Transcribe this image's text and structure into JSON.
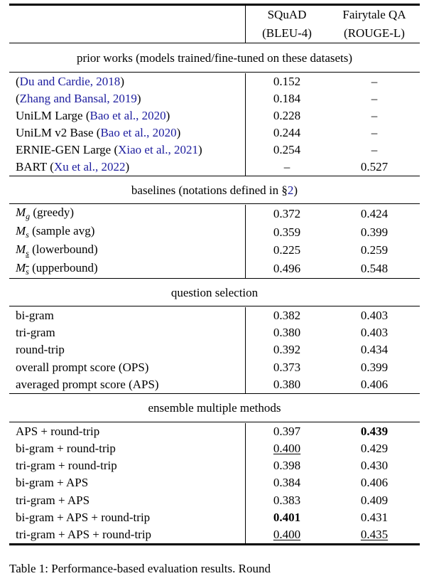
{
  "page": {
    "background": "#ffffff",
    "text_color": "#000000",
    "link_color": "#1c1c9e"
  },
  "header": {
    "col1_line1": "SQuAD",
    "col1_line2": "(BLEU-4)",
    "col2_line1": "Fairytale QA",
    "col2_line2": "(ROUGE-L)"
  },
  "sections": [
    {
      "title": [
        {
          "t": "prior works (models trained/fine-tuned on these datasets)",
          "s": "p"
        }
      ],
      "rows": [
        {
          "label": [
            {
              "t": "(",
              "s": "p"
            },
            {
              "t": "Du and Cardie, 2018",
              "s": "l"
            },
            {
              "t": ")",
              "s": "p"
            }
          ],
          "v1": {
            "t": "0.152",
            "s": "p"
          },
          "v2": {
            "t": "–",
            "s": "p"
          }
        },
        {
          "label": [
            {
              "t": "(",
              "s": "p"
            },
            {
              "t": "Zhang and Bansal, 2019",
              "s": "l"
            },
            {
              "t": ")",
              "s": "p"
            }
          ],
          "v1": {
            "t": "0.184",
            "s": "p"
          },
          "v2": {
            "t": "–",
            "s": "p"
          }
        },
        {
          "label": [
            {
              "t": "UniLM Large (",
              "s": "p"
            },
            {
              "t": "Bao et al., 2020",
              "s": "l"
            },
            {
              "t": ")",
              "s": "p"
            }
          ],
          "v1": {
            "t": "0.228",
            "s": "p"
          },
          "v2": {
            "t": "–",
            "s": "p"
          }
        },
        {
          "label": [
            {
              "t": "UniLM v2 Base (",
              "s": "p"
            },
            {
              "t": "Bao et al., 2020",
              "s": "l"
            },
            {
              "t": ")",
              "s": "p"
            }
          ],
          "v1": {
            "t": "0.244",
            "s": "p"
          },
          "v2": {
            "t": "–",
            "s": "p"
          }
        },
        {
          "label": [
            {
              "t": "ERNIE-GEN Large (",
              "s": "p"
            },
            {
              "t": "Xiao et al., 2021",
              "s": "l"
            },
            {
              "t": ")",
              "s": "p"
            }
          ],
          "v1": {
            "t": "0.254",
            "s": "p"
          },
          "v2": {
            "t": "–",
            "s": "p"
          }
        },
        {
          "label": [
            {
              "t": "BART (",
              "s": "p"
            },
            {
              "t": "Xu et al., 2022",
              "s": "l"
            },
            {
              "t": ")",
              "s": "p"
            }
          ],
          "v1": {
            "t": "–",
            "s": "p"
          },
          "v2": {
            "t": "0.527",
            "s": "p"
          }
        }
      ]
    },
    {
      "title": [
        {
          "t": "baselines (notations defined in §",
          "s": "p"
        },
        {
          "t": "2",
          "s": "l"
        },
        {
          "t": ")",
          "s": "p"
        }
      ],
      "rows": [
        {
          "label": [
            {
              "t": "M",
              "s": "mi"
            },
            {
              "t": "g",
              "s": "ms"
            },
            {
              "t": " (greedy)",
              "s": "p"
            }
          ],
          "v1": {
            "t": "0.372",
            "s": "p"
          },
          "v2": {
            "t": "0.424",
            "s": "p"
          }
        },
        {
          "label": [
            {
              "t": "M",
              "s": "mi"
            },
            {
              "t": "s",
              "s": "ms"
            },
            {
              "t": " (sample avg)",
              "s": "p"
            }
          ],
          "v1": {
            "t": "0.359",
            "s": "p"
          },
          "v2": {
            "t": "0.399",
            "s": "p"
          }
        },
        {
          "label": [
            {
              "t": "M",
              "s": "mi"
            },
            {
              "t": "s",
              "s": "msu"
            },
            {
              "t": " (lowerbound)",
              "s": "p"
            }
          ],
          "v1": {
            "t": "0.225",
            "s": "p"
          },
          "v2": {
            "t": "0.259",
            "s": "p"
          }
        },
        {
          "label": [
            {
              "t": "M",
              "s": "mi"
            },
            {
              "t": "s",
              "s": "mso"
            },
            {
              "t": " (upperbound)",
              "s": "p"
            }
          ],
          "v1": {
            "t": "0.496",
            "s": "p"
          },
          "v2": {
            "t": "0.548",
            "s": "p"
          }
        }
      ]
    },
    {
      "title": [
        {
          "t": "question selection",
          "s": "p"
        }
      ],
      "rows": [
        {
          "label": [
            {
              "t": "bi-gram",
              "s": "p"
            }
          ],
          "v1": {
            "t": "0.382",
            "s": "p"
          },
          "v2": {
            "t": "0.403",
            "s": "p"
          }
        },
        {
          "label": [
            {
              "t": "tri-gram",
              "s": "p"
            }
          ],
          "v1": {
            "t": "0.380",
            "s": "p"
          },
          "v2": {
            "t": "0.403",
            "s": "p"
          }
        },
        {
          "label": [
            {
              "t": "round-trip",
              "s": "p"
            }
          ],
          "v1": {
            "t": "0.392",
            "s": "p"
          },
          "v2": {
            "t": "0.434",
            "s": "p"
          }
        },
        {
          "label": [
            {
              "t": "overall prompt score (OPS)",
              "s": "p"
            }
          ],
          "v1": {
            "t": "0.373",
            "s": "p"
          },
          "v2": {
            "t": "0.399",
            "s": "p"
          }
        },
        {
          "label": [
            {
              "t": "averaged prompt score (APS)",
              "s": "p"
            }
          ],
          "v1": {
            "t": "0.380",
            "s": "p"
          },
          "v2": {
            "t": "0.406",
            "s": "p"
          }
        }
      ]
    },
    {
      "title": [
        {
          "t": "ensemble multiple methods",
          "s": "p"
        }
      ],
      "rows": [
        {
          "label": [
            {
              "t": "APS + round-trip",
              "s": "p"
            }
          ],
          "v1": {
            "t": "0.397",
            "s": "p"
          },
          "v2": {
            "t": "0.439",
            "s": "b"
          }
        },
        {
          "label": [
            {
              "t": "bi-gram + round-trip",
              "s": "p"
            }
          ],
          "v1": {
            "t": "0.400",
            "s": "u"
          },
          "v2": {
            "t": "0.429",
            "s": "p"
          }
        },
        {
          "label": [
            {
              "t": "tri-gram + round-trip",
              "s": "p"
            }
          ],
          "v1": {
            "t": "0.398",
            "s": "p"
          },
          "v2": {
            "t": "0.430",
            "s": "p"
          }
        },
        {
          "label": [
            {
              "t": "bi-gram + APS",
              "s": "p"
            }
          ],
          "v1": {
            "t": "0.384",
            "s": "p"
          },
          "v2": {
            "t": "0.406",
            "s": "p"
          }
        },
        {
          "label": [
            {
              "t": "tri-gram + APS",
              "s": "p"
            }
          ],
          "v1": {
            "t": "0.383",
            "s": "p"
          },
          "v2": {
            "t": "0.409",
            "s": "p"
          }
        },
        {
          "label": [
            {
              "t": "bi-gram + APS + round-trip",
              "s": "p"
            }
          ],
          "v1": {
            "t": "0.401",
            "s": "b"
          },
          "v2": {
            "t": "0.431",
            "s": "p"
          }
        },
        {
          "label": [
            {
              "t": "tri-gram + APS + round-trip",
              "s": "p"
            }
          ],
          "v1": {
            "t": "0.400",
            "s": "u"
          },
          "v2": {
            "t": "0.435",
            "s": "u"
          }
        }
      ]
    }
  ],
  "caption": {
    "text": "Table 1: Performance-based evaluation results. Round"
  }
}
